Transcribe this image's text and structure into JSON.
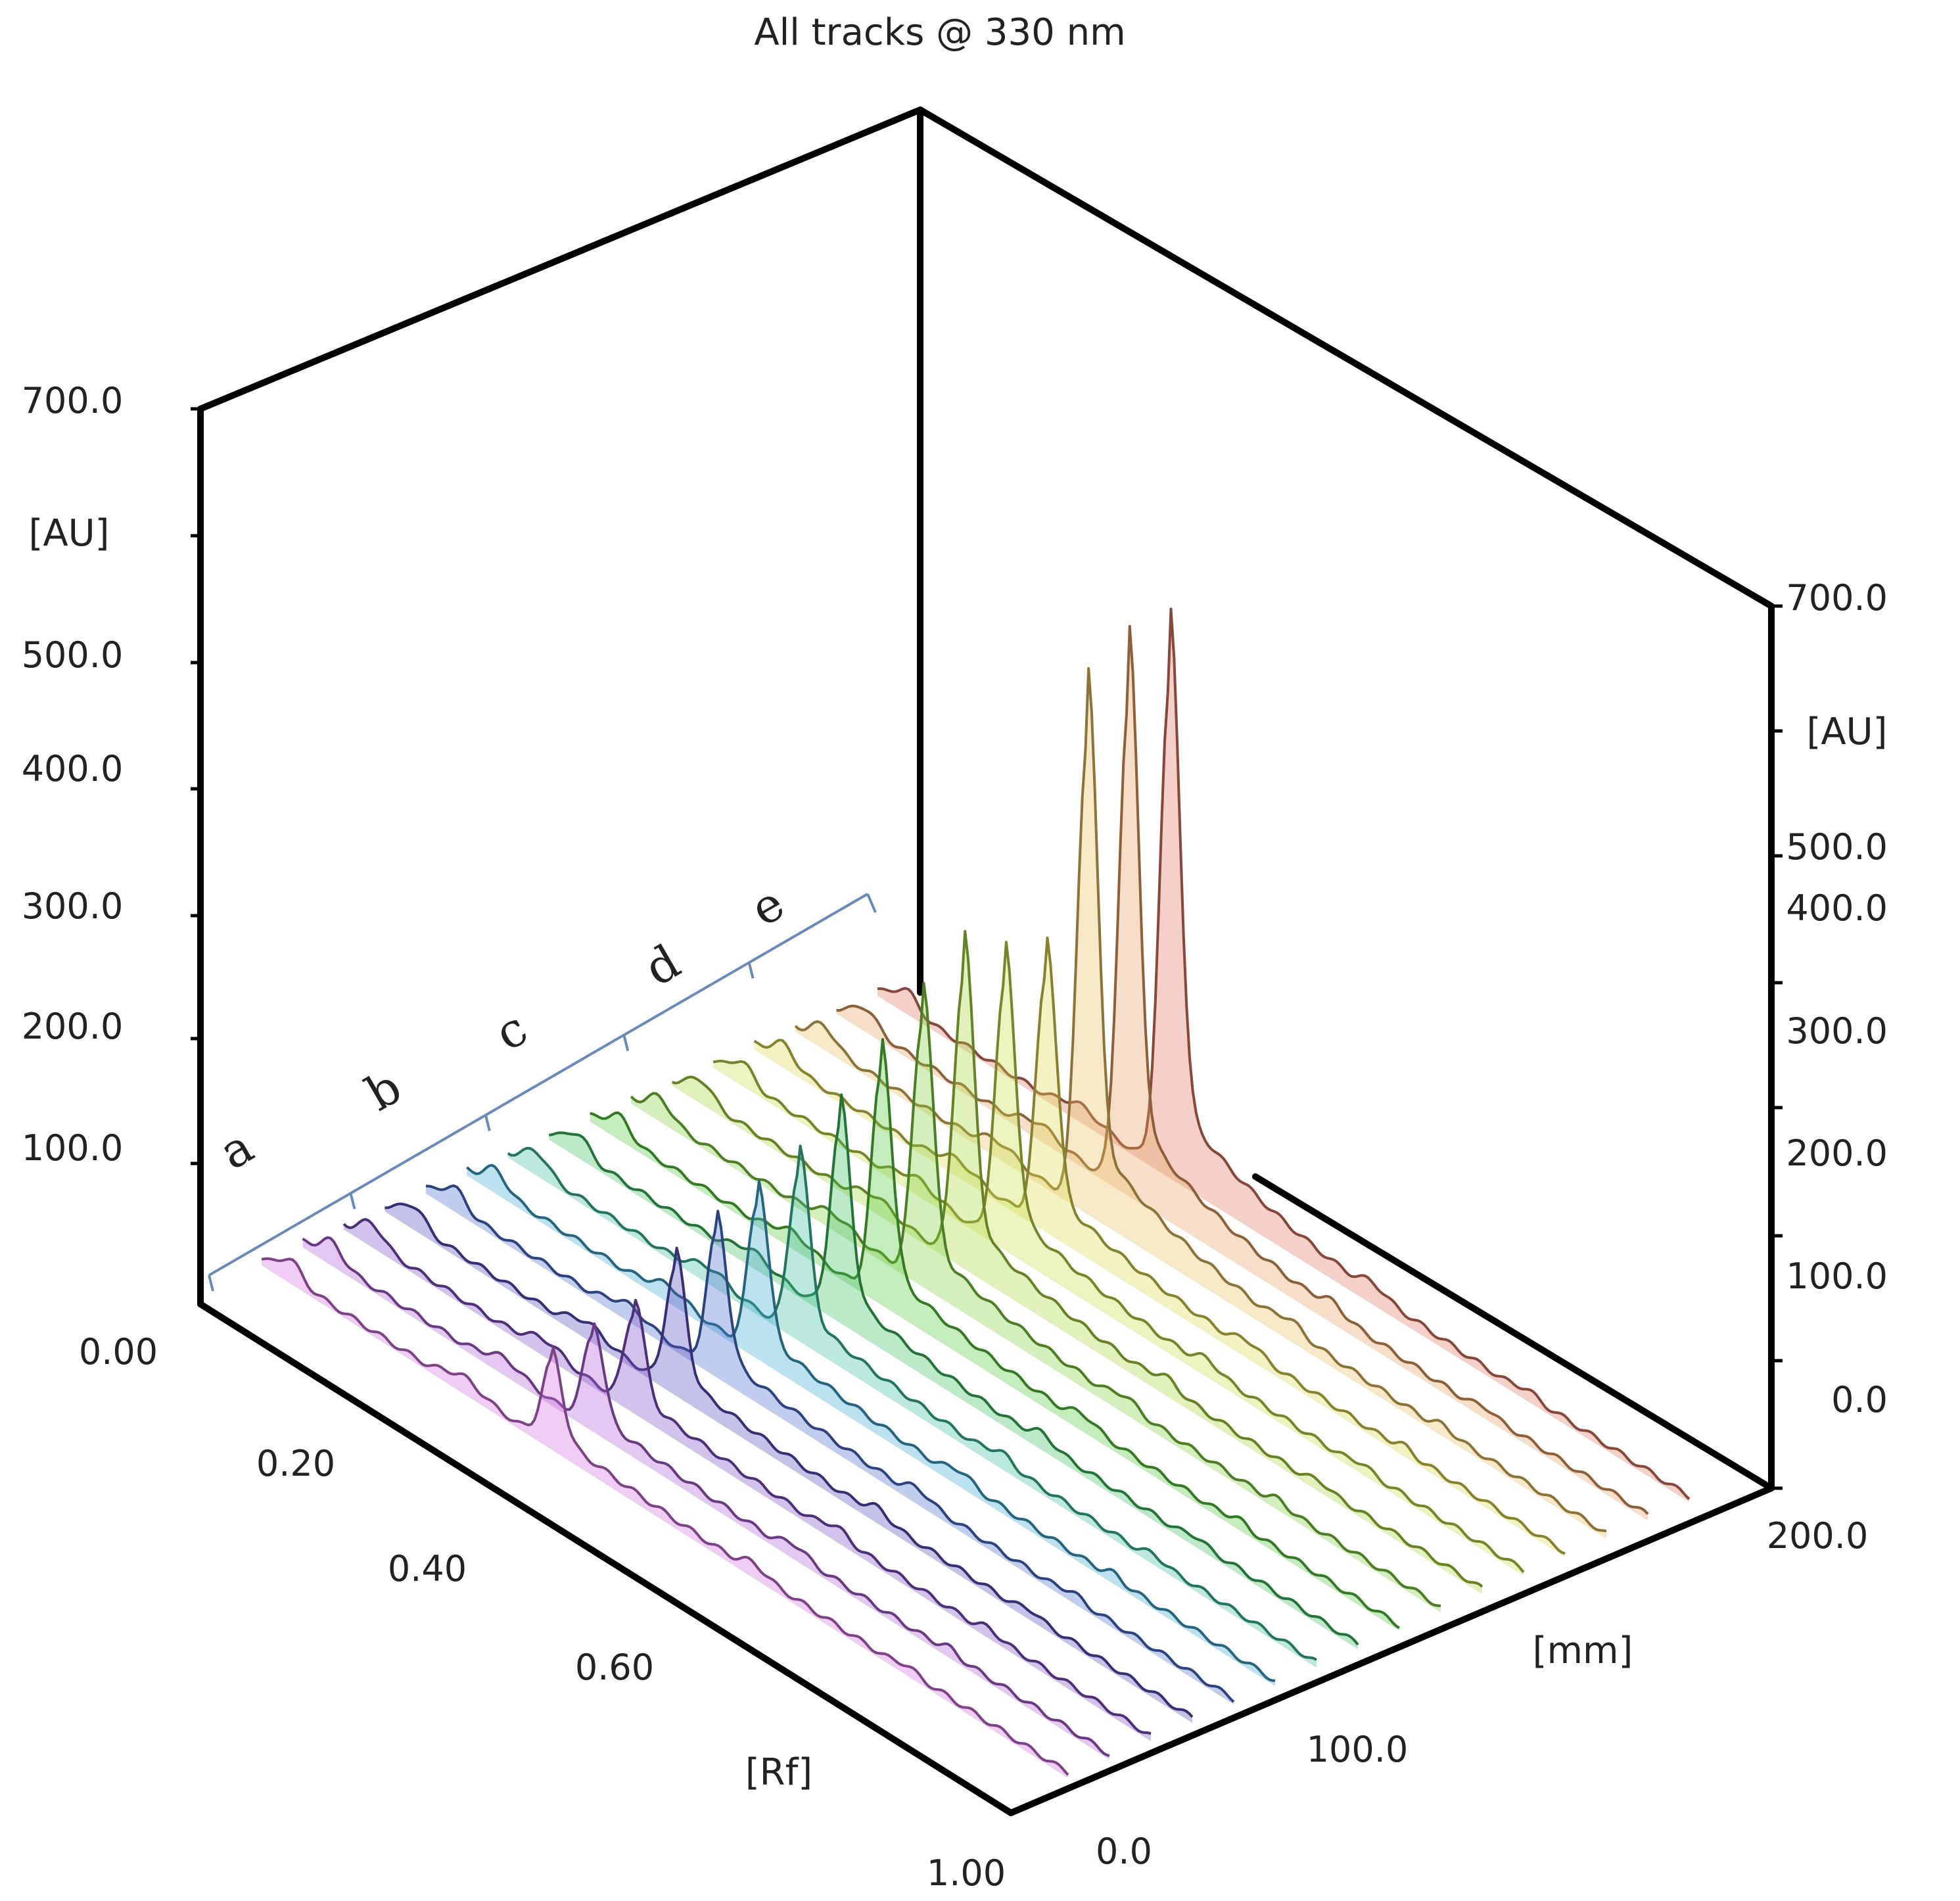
{
  "chart_data": {
    "type": "area",
    "title": "All tracks @ 330 nm",
    "ylabel": "[AU]",
    "y_ticks_left": [
      "700.0",
      "500.0",
      "400.0",
      "300.0",
      "200.0",
      "100.0"
    ],
    "y_ticks_right": [
      "700.0",
      "500.0",
      "400.0",
      "300.0",
      "200.0",
      "100.0",
      "0.0"
    ],
    "rf_label": "[Rf]",
    "rf_ticks": [
      "0.00",
      "0.20",
      "0.40",
      "0.60",
      "1.00"
    ],
    "mm_label": "[mm]",
    "mm_ticks": [
      "0.0",
      "100.0",
      "200.0"
    ],
    "group_labels": [
      "a",
      "b",
      "c",
      "d",
      "e"
    ],
    "grid": false,
    "series": [
      {
        "track": 1,
        "peak_rf": 0.36,
        "peak_au": 95,
        "color": "#d070e0"
      },
      {
        "track": 2,
        "peak_rf": 0.36,
        "peak_au": 105,
        "color": "#b060d8"
      },
      {
        "track": 3,
        "peak_rf": 0.36,
        "peak_au": 110,
        "color": "#8050c8"
      },
      {
        "track": 4,
        "peak_rf": 0.36,
        "peak_au": 140,
        "color": "#5a50c0"
      },
      {
        "track": 5,
        "peak_rf": 0.36,
        "peak_au": 160,
        "color": "#4a70d0"
      },
      {
        "track": 6,
        "peak_rf": 0.36,
        "peak_au": 175,
        "color": "#40a8d0"
      },
      {
        "track": 7,
        "peak_rf": 0.36,
        "peak_au": 190,
        "color": "#40c0a0"
      },
      {
        "track": 8,
        "peak_rf": 0.36,
        "peak_au": 220,
        "color": "#40c060"
      },
      {
        "track": 9,
        "peak_rf": 0.36,
        "peak_au": 260,
        "color": "#58c840"
      },
      {
        "track": 10,
        "peak_rf": 0.36,
        "peak_au": 300,
        "color": "#80d040"
      },
      {
        "track": 11,
        "peak_rf": 0.36,
        "peak_au": 330,
        "color": "#a8d840"
      },
      {
        "track": 12,
        "peak_rf": 0.36,
        "peak_au": 300,
        "color": "#c8dc48"
      },
      {
        "track": 13,
        "peak_rf": 0.36,
        "peak_au": 290,
        "color": "#e0d850"
      },
      {
        "track": 14,
        "peak_rf": 0.36,
        "peak_au": 540,
        "color": "#e8c060"
      },
      {
        "track": 15,
        "peak_rf": 0.36,
        "peak_au": 560,
        "color": "#e8a060"
      },
      {
        "track": 16,
        "peak_rf": 0.36,
        "peak_au": 560,
        "color": "#e07860"
      }
    ],
    "ylim": [
      0,
      700
    ]
  }
}
